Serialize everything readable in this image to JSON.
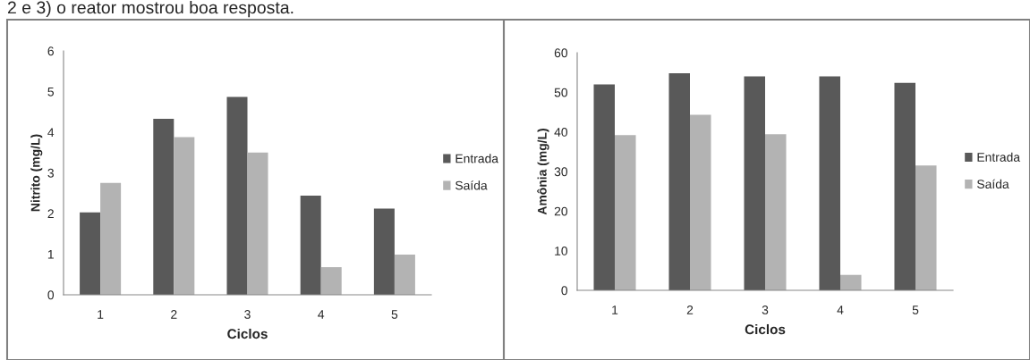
{
  "chart_data": [
    {
      "type": "bar",
      "xlabel": "Ciclos",
      "ylabel": "Nitrito (mg/L)",
      "categories": [
        "1",
        "2",
        "3",
        "4",
        "5"
      ],
      "series": [
        {
          "name": "Entrada",
          "color": "#595959",
          "values": [
            2.03,
            4.33,
            4.87,
            2.44,
            2.12
          ]
        },
        {
          "name": "Saída",
          "color": "#b3b3b3",
          "values": [
            2.75,
            3.88,
            3.5,
            0.68,
            0.99
          ]
        }
      ],
      "ylim": [
        0,
        6
      ],
      "yticks": [
        0,
        1,
        2,
        3,
        4,
        5,
        6
      ],
      "legend": "right",
      "grid": false,
      "annotations": [
        "2 e 3) o reator mostrou boa resposta."
      ]
    },
    {
      "type": "bar",
      "xlabel": "Ciclos",
      "ylabel": "Amônia (mg/L)",
      "categories": [
        "1",
        "2",
        "3",
        "4",
        "5"
      ],
      "series": [
        {
          "name": "Entrada",
          "color": "#595959",
          "values": [
            52,
            54.8,
            54,
            54,
            52.4
          ]
        },
        {
          "name": "Saída",
          "color": "#b3b3b3",
          "values": [
            39.2,
            44.3,
            39.4,
            3.9,
            31.5
          ]
        }
      ],
      "ylim": [
        0,
        60
      ],
      "yticks": [
        0,
        10,
        20,
        30,
        40,
        50,
        60
      ],
      "legend": "right",
      "grid": false
    }
  ]
}
